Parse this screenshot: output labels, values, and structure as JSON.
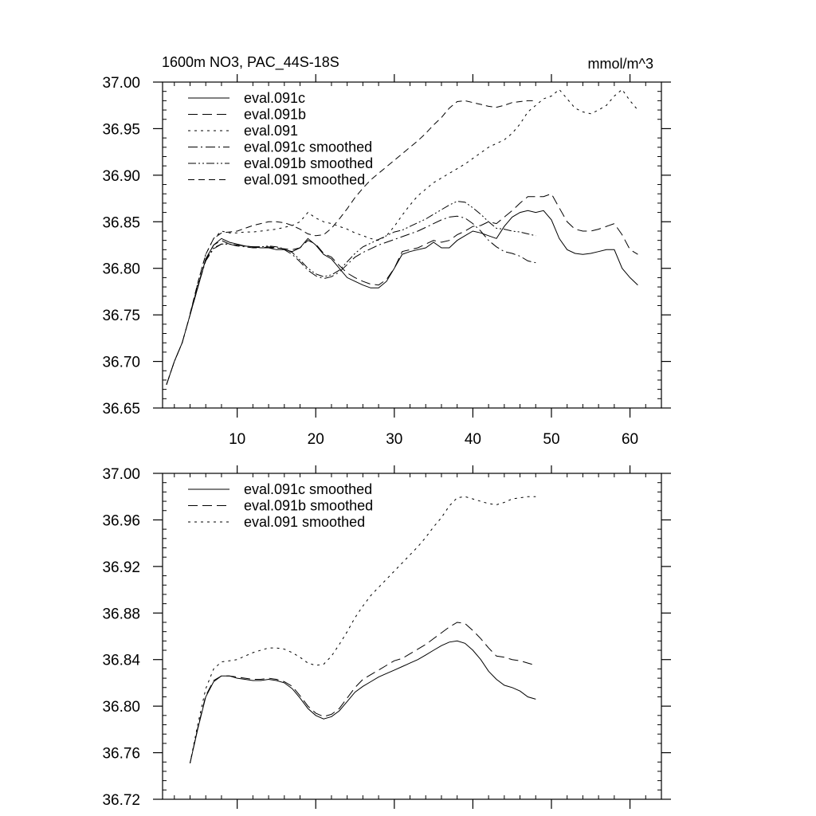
{
  "chart_data": [
    {
      "type": "line",
      "title": "1600m NO3, PAC_44S-18S",
      "units": "mmol/m^3",
      "xlabel": "",
      "ylabel": "",
      "xlim": [
        0.5,
        64
      ],
      "ylim": [
        36.65,
        37.0
      ],
      "xticks": [
        10,
        20,
        30,
        40,
        50,
        60
      ],
      "xtick_labels": [
        "10",
        "20",
        "30",
        "40",
        "50",
        "60"
      ],
      "yticks": [
        36.65,
        36.7,
        36.75,
        36.8,
        36.85,
        36.9,
        36.95,
        37.0
      ],
      "ytick_labels": [
        "36.65",
        "36.70",
        "36.75",
        "36.80",
        "36.85",
        "36.90",
        "36.95",
        "37.00"
      ],
      "legend_position": "top-left",
      "series": [
        {
          "name": "eval.091c",
          "dash": "solid",
          "x_start": 1,
          "values": [
            36.675,
            36.7,
            36.72,
            36.75,
            36.78,
            36.81,
            36.825,
            36.832,
            36.828,
            36.826,
            36.824,
            36.823,
            36.822,
            36.822,
            36.82,
            36.82,
            36.818,
            36.822,
            36.832,
            36.825,
            36.815,
            36.81,
            36.8,
            36.79,
            36.786,
            36.782,
            36.779,
            36.779,
            36.786,
            36.8,
            36.815,
            36.818,
            36.82,
            36.822,
            36.828,
            36.822,
            36.822,
            36.83,
            36.835,
            36.84,
            36.838,
            36.835,
            36.832,
            36.845,
            36.855,
            36.86,
            36.862,
            36.86,
            36.862,
            36.852,
            36.832,
            36.82,
            36.816,
            36.815,
            36.816,
            36.818,
            36.82,
            36.82,
            36.8,
            36.79,
            36.782
          ]
        },
        {
          "name": "eval.091b",
          "dash": "long",
          "x_start": 1,
          "values": [
            36.675,
            36.7,
            36.72,
            36.75,
            36.78,
            36.81,
            36.825,
            36.83,
            36.826,
            36.825,
            36.824,
            36.823,
            36.823,
            36.822,
            36.822,
            36.821,
            36.82,
            36.822,
            36.83,
            36.826,
            36.816,
            36.812,
            36.803,
            36.795,
            36.79,
            36.786,
            36.783,
            36.782,
            36.788,
            36.8,
            36.818,
            36.82,
            36.822,
            36.826,
            36.83,
            36.828,
            36.83,
            36.836,
            36.84,
            36.845,
            36.846,
            36.85,
            36.848,
            36.855,
            36.862,
            36.87,
            36.877,
            36.877,
            36.877,
            36.88,
            36.865,
            36.85,
            36.842,
            36.84,
            36.84,
            36.842,
            36.845,
            36.848,
            36.836,
            36.82,
            36.815
          ]
        },
        {
          "name": "eval.091",
          "dash": "short",
          "x_start": 1,
          "values": [
            36.675,
            36.7,
            36.72,
            36.75,
            36.785,
            36.815,
            36.832,
            36.84,
            36.838,
            36.838,
            36.839,
            36.839,
            36.84,
            36.841,
            36.842,
            36.844,
            36.846,
            36.85,
            36.86,
            36.854,
            36.85,
            36.848,
            36.845,
            36.842,
            36.838,
            36.835,
            36.832,
            36.83,
            36.835,
            36.845,
            36.857,
            36.868,
            36.878,
            36.885,
            36.892,
            36.897,
            36.902,
            36.907,
            36.912,
            36.918,
            36.924,
            36.93,
            36.934,
            36.938,
            36.945,
            36.955,
            36.968,
            36.975,
            36.982,
            36.985,
            36.992,
            36.982,
            36.972,
            36.968,
            36.966,
            36.97,
            36.975,
            36.985,
            36.992,
            36.98,
            36.97
          ]
        },
        {
          "name": "eval.091c smoothed",
          "dash": "dashdot",
          "x_start": 4,
          "values": [
            36.751,
            36.781,
            36.808,
            36.821,
            36.826,
            36.826,
            36.824,
            36.823,
            36.822,
            36.822,
            36.823,
            36.822,
            36.82,
            36.815,
            36.807,
            36.798,
            36.792,
            36.789,
            36.791,
            36.796,
            36.804,
            36.812,
            36.817,
            36.821,
            36.825,
            36.828,
            36.831,
            36.834,
            36.837,
            36.84,
            36.844,
            36.848,
            36.852,
            36.855,
            36.856,
            36.854,
            36.848,
            36.84,
            36.83,
            36.823,
            36.818,
            36.816,
            36.813,
            36.808,
            36.806
          ]
        },
        {
          "name": "eval.091b smoothed",
          "dash": "dashdotdot",
          "x_start": 4,
          "values": [
            36.751,
            36.782,
            36.809,
            36.822,
            36.826,
            36.826,
            36.825,
            36.824,
            36.823,
            36.823,
            36.824,
            36.823,
            36.821,
            36.817,
            36.809,
            36.8,
            36.794,
            36.791,
            36.793,
            36.798,
            36.807,
            36.816,
            36.823,
            36.827,
            36.831,
            36.835,
            36.839,
            36.841,
            36.845,
            36.849,
            36.853,
            36.858,
            36.863,
            36.868,
            36.872,
            36.871,
            36.865,
            36.858,
            36.85,
            36.843,
            36.842,
            36.84,
            36.839,
            36.837,
            36.835
          ]
        },
        {
          "name": "eval.091 smoothed",
          "dash": "medium",
          "x_start": 4,
          "values": [
            36.751,
            36.785,
            36.815,
            36.832,
            36.838,
            36.839,
            36.84,
            36.843,
            36.846,
            36.848,
            36.85,
            36.85,
            36.849,
            36.846,
            36.842,
            36.837,
            36.835,
            36.836,
            36.843,
            36.853,
            36.864,
            36.876,
            36.886,
            36.895,
            36.902,
            36.909,
            36.916,
            36.923,
            36.93,
            36.937,
            36.945,
            36.954,
            36.962,
            36.972,
            36.979,
            36.98,
            36.978,
            36.976,
            36.974,
            36.973,
            36.975,
            36.978,
            36.979,
            36.98,
            36.98
          ]
        }
      ]
    },
    {
      "type": "line",
      "title": "",
      "xlabel": "",
      "ylabel": "",
      "xlim": [
        0.5,
        64
      ],
      "ylim": [
        36.72,
        37.0
      ],
      "xticks": [
        10,
        20,
        30,
        40,
        50,
        60
      ],
      "yticks": [
        36.72,
        36.76,
        36.8,
        36.84,
        36.88,
        36.92,
        36.96,
        37.0
      ],
      "ytick_labels": [
        "36.72",
        "36.76",
        "36.80",
        "36.84",
        "36.88",
        "36.92",
        "36.96",
        "37.00"
      ],
      "legend_position": "top-left",
      "series": [
        {
          "name": "eval.091c smoothed",
          "dash": "solid",
          "x_start": 4,
          "values": [
            36.751,
            36.781,
            36.808,
            36.821,
            36.826,
            36.826,
            36.824,
            36.823,
            36.822,
            36.822,
            36.823,
            36.822,
            36.82,
            36.815,
            36.807,
            36.798,
            36.792,
            36.789,
            36.791,
            36.796,
            36.804,
            36.812,
            36.817,
            36.821,
            36.825,
            36.828,
            36.831,
            36.834,
            36.837,
            36.84,
            36.844,
            36.848,
            36.852,
            36.855,
            36.856,
            36.854,
            36.848,
            36.84,
            36.83,
            36.823,
            36.818,
            36.816,
            36.813,
            36.808,
            36.806
          ]
        },
        {
          "name": "eval.091b smoothed",
          "dash": "long",
          "x_start": 4,
          "values": [
            36.751,
            36.782,
            36.809,
            36.822,
            36.826,
            36.826,
            36.825,
            36.824,
            36.823,
            36.823,
            36.824,
            36.823,
            36.821,
            36.817,
            36.809,
            36.8,
            36.794,
            36.791,
            36.793,
            36.798,
            36.807,
            36.816,
            36.823,
            36.827,
            36.831,
            36.835,
            36.839,
            36.841,
            36.845,
            36.849,
            36.853,
            36.858,
            36.863,
            36.868,
            36.872,
            36.871,
            36.865,
            36.858,
            36.85,
            36.843,
            36.842,
            36.84,
            36.839,
            36.837,
            36.835
          ]
        },
        {
          "name": "eval.091 smoothed",
          "dash": "short",
          "x_start": 4,
          "values": [
            36.751,
            36.785,
            36.815,
            36.832,
            36.838,
            36.839,
            36.84,
            36.843,
            36.846,
            36.848,
            36.85,
            36.85,
            36.849,
            36.846,
            36.842,
            36.837,
            36.835,
            36.836,
            36.843,
            36.853,
            36.864,
            36.876,
            36.886,
            36.895,
            36.902,
            36.909,
            36.916,
            36.923,
            36.93,
            36.937,
            36.945,
            36.954,
            36.962,
            36.972,
            36.979,
            36.98,
            36.978,
            36.976,
            36.974,
            36.973,
            36.975,
            36.978,
            36.979,
            36.98,
            36.98
          ]
        }
      ]
    }
  ]
}
